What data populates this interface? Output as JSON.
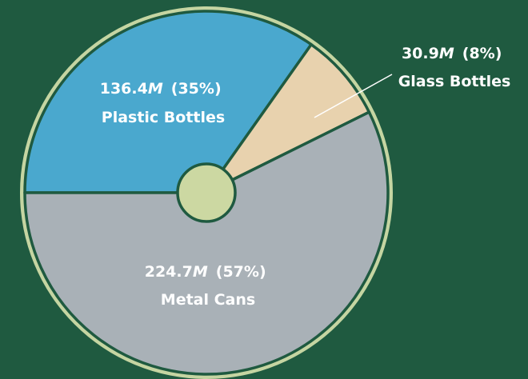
{
  "chart_data": {
    "type": "pie",
    "unit": "M",
    "slices": [
      {
        "label": "Plastic Bottles",
        "value": 136.4,
        "percent": "35%",
        "color": "#4aa8ce",
        "text_color": "#ffffff"
      },
      {
        "label": "Glass Bottles",
        "value": 30.9,
        "percent": "8%",
        "color": "#e8d2ae",
        "text_color": "#ffffff"
      },
      {
        "label": "Metal Cans",
        "value": 224.7,
        "percent": "57%",
        "color": "#a9b1b7",
        "text_color": "#ffffff"
      }
    ],
    "colors": {
      "background": "#1f5a40",
      "outer_ring": "#c5d5a2",
      "center_hole": "#ccd8a2",
      "slice_border": "#1f5a40"
    }
  }
}
